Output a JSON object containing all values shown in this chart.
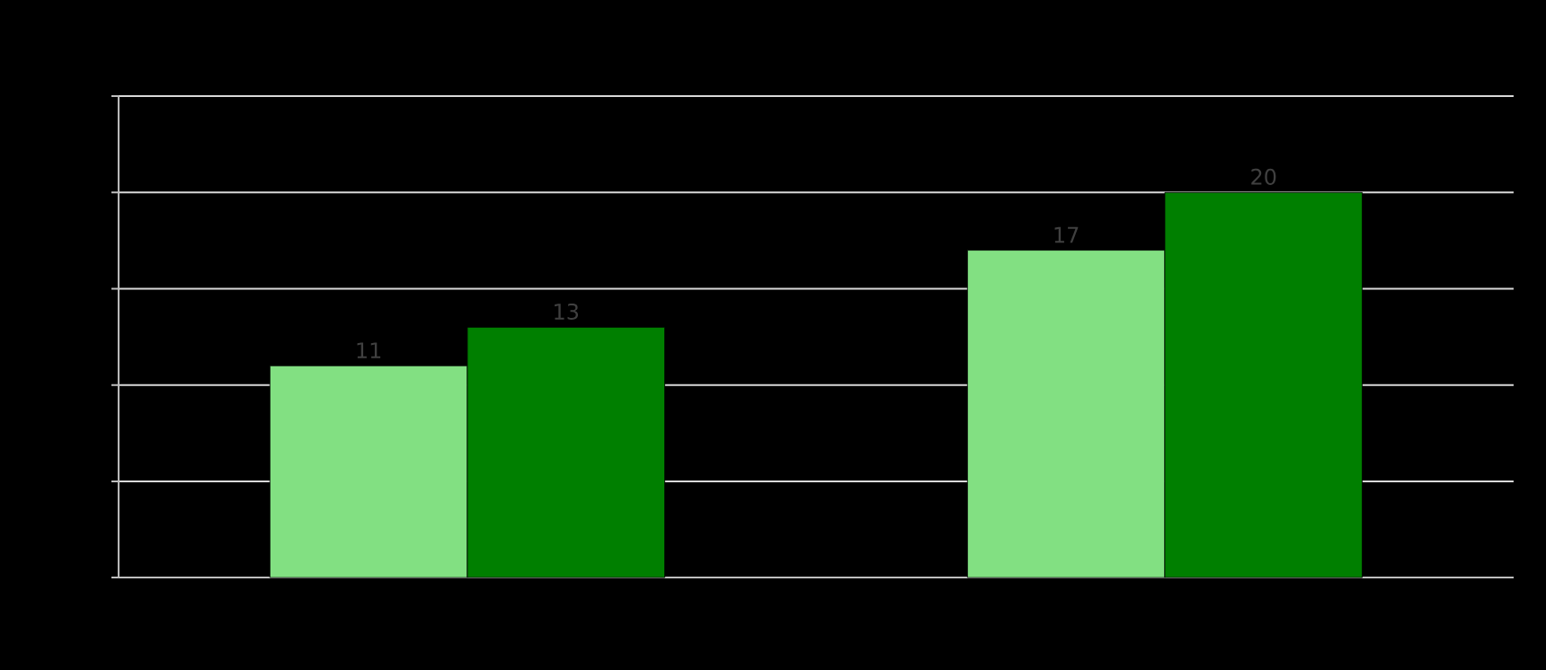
{
  "chart_data": {
    "type": "bar",
    "categories": [
      null,
      null
    ],
    "series": [
      {
        "color": "#82e082",
        "values": [
          11,
          17
        ]
      },
      {
        "color": "#007f00",
        "values": [
          13,
          20
        ]
      }
    ],
    "ylim": [
      0,
      25
    ],
    "yticks": [
      {
        "value": 0,
        "label": null
      },
      {
        "value": 5,
        "label": null
      },
      {
        "value": 10,
        "label": null
      },
      {
        "value": 15,
        "label": null
      },
      {
        "value": 20,
        "label": null
      },
      {
        "value": 25,
        "label": null
      }
    ],
    "grid": "y",
    "data_labels": true
  }
}
